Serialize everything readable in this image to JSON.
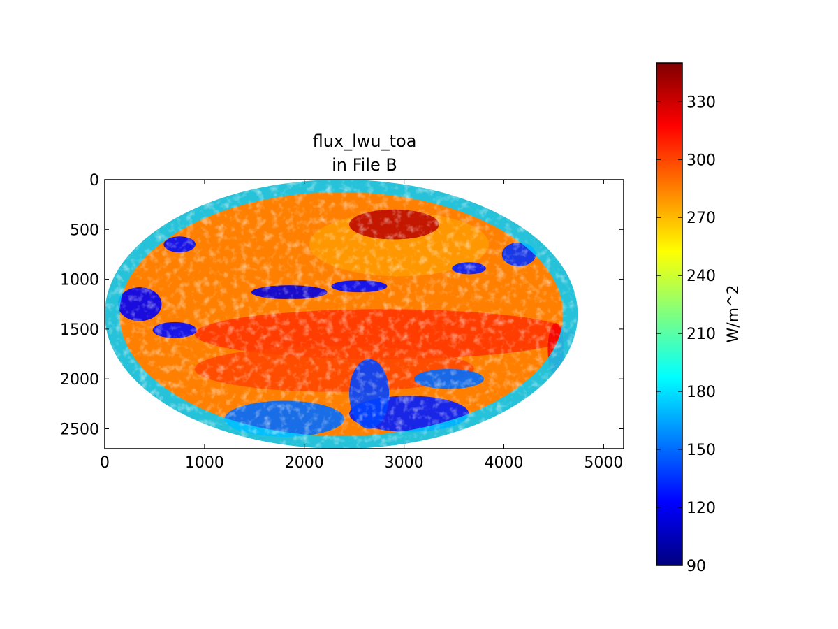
{
  "chart_data": {
    "type": "heatmap",
    "title": "flux_lwu_toa\nin File B",
    "title_lines": [
      "flux_lwu_toa",
      "in File B"
    ],
    "xlabel": "",
    "ylabel": "",
    "xlim": [
      0,
      5200
    ],
    "ylim": [
      2700,
      0
    ],
    "x_ticks": [
      0,
      1000,
      2000,
      3000,
      4000,
      5000
    ],
    "y_ticks": [
      0,
      500,
      1000,
      1500,
      2000,
      2500
    ],
    "grid": false,
    "image_extent": {
      "x": [
        0,
        4740
      ],
      "y": [
        0,
        2700
      ]
    },
    "colorbar": {
      "label": "W/m^2",
      "range": [
        90,
        350
      ],
      "ticks": [
        90,
        120,
        150,
        180,
        210,
        240,
        270,
        300,
        330
      ],
      "colormap": "jet",
      "colors": [
        "#00007f",
        "#0000ff",
        "#007fff",
        "#00ffff",
        "#7fff7f",
        "#ffff00",
        "#ff7f00",
        "#ff0000",
        "#7f0000"
      ]
    },
    "field_regions": [
      {
        "name": "background",
        "value": 285
      },
      {
        "name": "north-pacific-high",
        "cx": 2950,
        "cy": 650,
        "rx": 900,
        "ry": 320,
        "value": 278
      },
      {
        "name": "equatorial-belt",
        "cx": 2800,
        "cy": 1550,
        "rx": 1900,
        "ry": 250,
        "value": 305
      },
      {
        "name": "southern-subtropics",
        "cx": 2300,
        "cy": 1900,
        "rx": 1400,
        "ry": 230,
        "value": 300
      },
      {
        "name": "desert-hotspot",
        "cx": 2900,
        "cy": 450,
        "rx": 450,
        "ry": 150,
        "value": 335
      },
      {
        "name": "coastal-hotspot",
        "cx": 4520,
        "cy": 1700,
        "rx": 80,
        "ry": 260,
        "value": 320
      },
      {
        "name": "rim-cold",
        "value": 175
      },
      {
        "name": "cloud-band-1",
        "cx": 1850,
        "cy": 1130,
        "rx": 380,
        "ry": 70,
        "value": 115
      },
      {
        "name": "cloud-band-2",
        "cx": 2550,
        "cy": 1070,
        "rx": 280,
        "ry": 60,
        "value": 125
      },
      {
        "name": "cloud-band-3",
        "cx": 3650,
        "cy": 890,
        "rx": 170,
        "ry": 60,
        "value": 130
      },
      {
        "name": "cloud-band-4",
        "cx": 700,
        "cy": 1510,
        "rx": 220,
        "ry": 80,
        "value": 125
      },
      {
        "name": "cloud-cluster-5",
        "cx": 3450,
        "cy": 2000,
        "rx": 350,
        "ry": 100,
        "value": 150
      },
      {
        "name": "cloud-cluster-6",
        "cx": 3050,
        "cy": 2350,
        "rx": 600,
        "ry": 180,
        "value": 130
      },
      {
        "name": "cloud-cluster-7",
        "cx": 1800,
        "cy": 2400,
        "rx": 600,
        "ry": 180,
        "value": 150
      },
      {
        "name": "cloud-cluster-8",
        "cx": 750,
        "cy": 650,
        "rx": 160,
        "ry": 80,
        "value": 125
      },
      {
        "name": "cloud-cluster-9",
        "cx": 4150,
        "cy": 750,
        "rx": 170,
        "ry": 120,
        "value": 135
      },
      {
        "name": "cloud-cluster-10",
        "cx": 350,
        "cy": 1250,
        "rx": 220,
        "ry": 170,
        "value": 120
      },
      {
        "name": "cloud-cluster-11",
        "cx": 2650,
        "cy": 2150,
        "rx": 200,
        "ry": 350,
        "value": 140
      }
    ]
  }
}
